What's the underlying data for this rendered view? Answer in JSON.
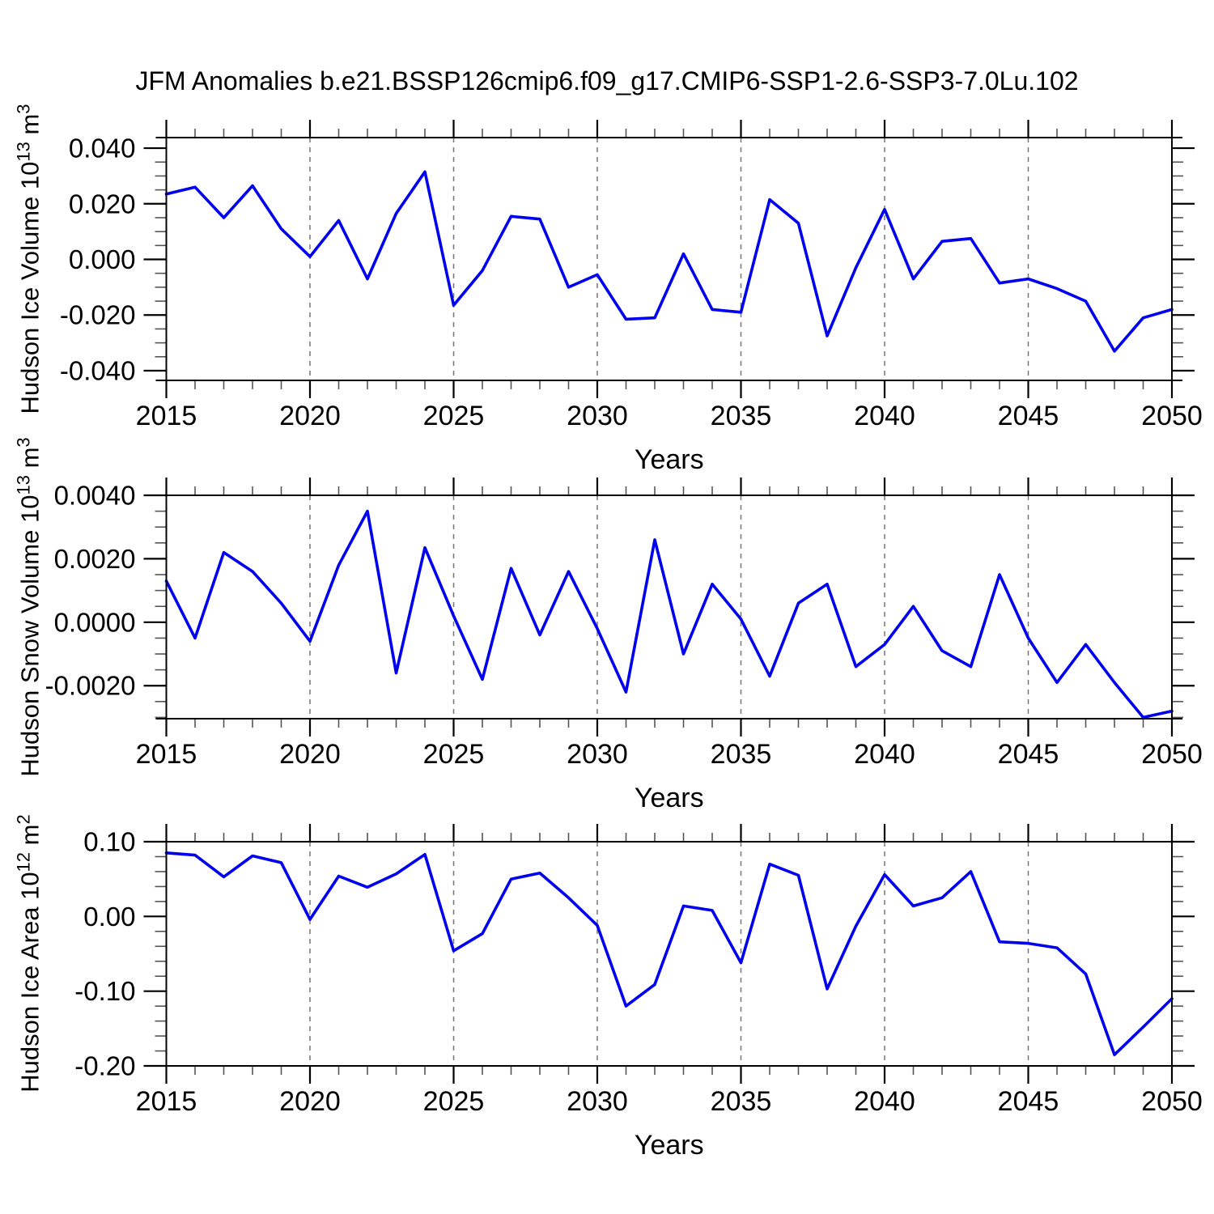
{
  "title": "JFM Anomalies b.e21.BSSP126cmip6.f09_g17.CMIP6-SSP1-2.6-SSP3-7.0Lu.102",
  "colors": {
    "line": "#0000ee",
    "grid": "#777777",
    "axis": "#000000",
    "minor_tick": "#555555",
    "text": "#000000",
    "background": "#ffffff"
  },
  "x_axis": {
    "label": "Years",
    "tick_labels": [
      "2015",
      "2020",
      "2025",
      "2030",
      "2035",
      "2040",
      "2045",
      "2050"
    ],
    "tick_values": [
      2015,
      2020,
      2025,
      2030,
      2035,
      2040,
      2045,
      2050
    ],
    "gridline_years": [
      2020,
      2025,
      2030,
      2035,
      2040,
      2045
    ],
    "minor_step": 1
  },
  "chart_data": [
    {
      "type": "line",
      "name": "Hudson Ice Volume",
      "ylabel": {
        "text": "Hudson Ice Volume 10",
        "exp": "13",
        "unit": " m",
        "unit_exp": "3"
      },
      "xlabel": "Years",
      "ylim": [
        -0.0435,
        0.0438
      ],
      "yticks": [
        {
          "label": "0.040",
          "value": 0.04
        },
        {
          "label": "0.020",
          "value": 0.02
        },
        {
          "label": "0.000",
          "value": 0.0
        },
        {
          "label": "-0.020",
          "value": -0.02
        },
        {
          "label": "-0.040",
          "value": -0.04
        }
      ],
      "y_minor_step": 0.005,
      "x": [
        2015,
        2016,
        2017,
        2018,
        2019,
        2020,
        2021,
        2022,
        2023,
        2024,
        2025,
        2026,
        2027,
        2028,
        2029,
        2030,
        2031,
        2032,
        2033,
        2034,
        2035,
        2036,
        2037,
        2038,
        2039,
        2040,
        2041,
        2042,
        2043,
        2044,
        2045,
        2046,
        2047,
        2048,
        2049,
        2050
      ],
      "values": [
        0.0235,
        0.026,
        0.015,
        0.0265,
        0.011,
        0.001,
        0.014,
        -0.007,
        0.0165,
        0.0315,
        -0.0165,
        -0.004,
        0.0155,
        0.0145,
        -0.01,
        -0.0055,
        -0.0215,
        -0.021,
        0.002,
        -0.018,
        -0.019,
        0.0215,
        0.013,
        -0.0275,
        -0.003,
        0.018,
        -0.007,
        0.0065,
        0.0075,
        -0.0085,
        -0.007,
        -0.0105,
        -0.015,
        -0.033,
        -0.021,
        -0.018
      ]
    },
    {
      "type": "line",
      "name": "Hudson Snow Volume",
      "ylabel": {
        "text": "Hudson Snow Volume 10",
        "exp": "13",
        "unit": " m",
        "unit_exp": "3"
      },
      "xlabel": "Years",
      "ylim": [
        -0.00304,
        0.004
      ],
      "yticks": [
        {
          "label": "0.0040",
          "value": 0.004
        },
        {
          "label": "0.0020",
          "value": 0.002
        },
        {
          "label": "0.0000",
          "value": 0.0
        },
        {
          "label": "-0.0020",
          "value": -0.002
        }
      ],
      "y_minor_step": 0.0005,
      "x": [
        2015,
        2016,
        2017,
        2018,
        2019,
        2020,
        2021,
        2022,
        2023,
        2024,
        2025,
        2026,
        2027,
        2028,
        2029,
        2030,
        2031,
        2032,
        2033,
        2034,
        2035,
        2036,
        2037,
        2038,
        2039,
        2040,
        2041,
        2042,
        2043,
        2044,
        2045,
        2046,
        2047,
        2048,
        2049,
        2050
      ],
      "values": [
        0.0013,
        -0.0005,
        0.0022,
        0.0016,
        0.0006,
        -0.0006,
        0.0018,
        0.0035,
        -0.0016,
        0.00235,
        0.0002,
        -0.0018,
        0.0017,
        -0.0004,
        0.0016,
        -0.0002,
        -0.0022,
        0.0026,
        -0.001,
        0.0012,
        0.0001,
        -0.0017,
        0.0006,
        0.0012,
        -0.0014,
        -0.0007,
        0.0005,
        -0.0009,
        -0.0014,
        0.0015,
        -0.0005,
        -0.0019,
        -0.0007,
        -0.0019,
        -0.003,
        -0.0028
      ]
    },
    {
      "type": "line",
      "name": "Hudson Ice Area",
      "ylabel": {
        "text": "Hudson Ice Area 10",
        "exp": "12",
        "unit": " m",
        "unit_exp": "2"
      },
      "xlabel": "Years",
      "ylim": [
        -0.2,
        0.1
      ],
      "yticks": [
        {
          "label": "0.10",
          "value": 0.1
        },
        {
          "label": "0.00",
          "value": 0.0
        },
        {
          "label": "-0.10",
          "value": -0.1
        },
        {
          "label": "-0.20",
          "value": -0.2
        }
      ],
      "y_minor_step": 0.02,
      "x": [
        2015,
        2016,
        2017,
        2018,
        2019,
        2020,
        2021,
        2022,
        2023,
        2024,
        2025,
        2026,
        2027,
        2028,
        2029,
        2030,
        2031,
        2032,
        2033,
        2034,
        2035,
        2036,
        2037,
        2038,
        2039,
        2040,
        2041,
        2042,
        2043,
        2044,
        2045,
        2046,
        2047,
        2048,
        2049,
        2050
      ],
      "values": [
        0.085,
        0.082,
        0.053,
        0.081,
        0.072,
        -0.004,
        0.054,
        0.039,
        0.057,
        0.083,
        -0.046,
        -0.023,
        0.05,
        0.058,
        0.025,
        -0.012,
        -0.12,
        -0.091,
        0.014,
        0.008,
        -0.062,
        0.07,
        0.055,
        -0.097,
        -0.013,
        0.056,
        0.014,
        0.025,
        0.06,
        -0.034,
        -0.036,
        -0.042,
        -0.077,
        -0.185,
        -0.148,
        -0.11
      ]
    }
  ]
}
